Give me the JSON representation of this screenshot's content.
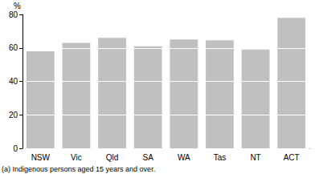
{
  "chart_data": {
    "type": "bar",
    "y_label": "%",
    "footnote": "(a) Indigenous persons aged 15 years and over.",
    "categories": [
      "NSW",
      "Vic",
      "Qld",
      "SA",
      "WA",
      "Tas",
      "NT",
      "ACT"
    ],
    "values": [
      58,
      63,
      66,
      61,
      65,
      64.5,
      59,
      78
    ],
    "color": "#c0c0c0",
    "ylim": [
      0,
      80
    ],
    "yticks": [
      0,
      20,
      40,
      60,
      80
    ],
    "grid": true
  }
}
